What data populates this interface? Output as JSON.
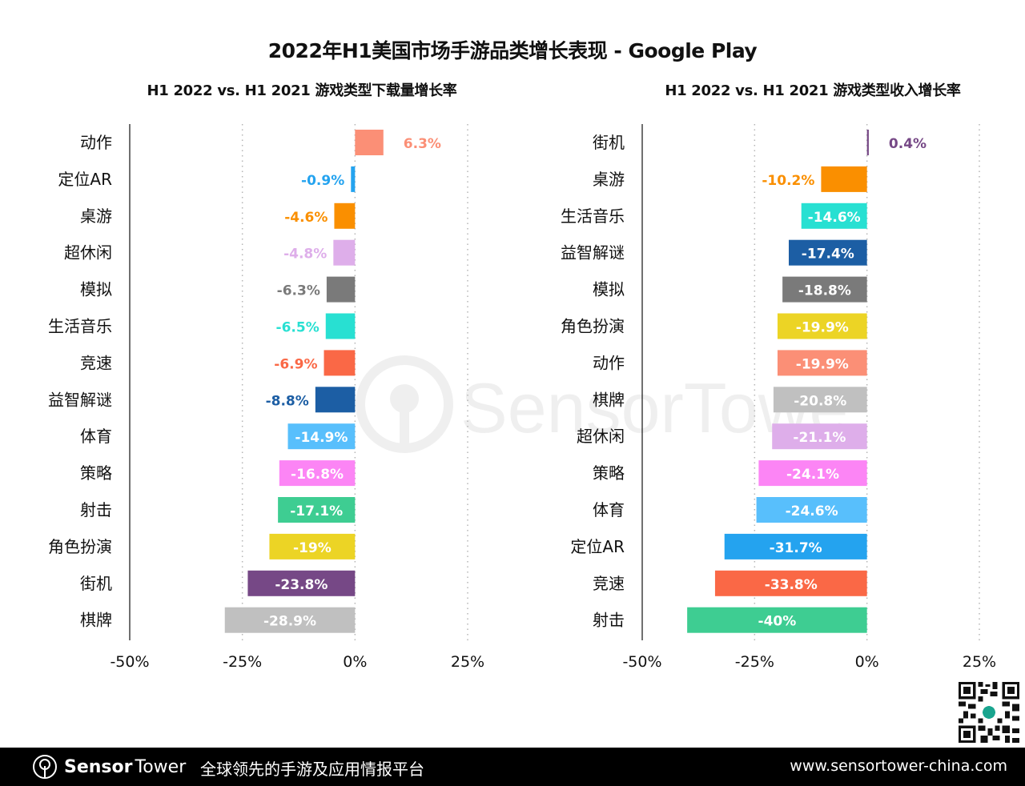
{
  "header": {
    "title": "2022年H1美国市场手游品类增长表现 - Google Play"
  },
  "chart_data": [
    {
      "type": "bar",
      "orientation": "horizontal",
      "title": "H1 2022 vs. H1 2021 游戏类型下载量增长率",
      "xlabel": "",
      "ylabel": "",
      "xlim": [
        -50,
        25
      ],
      "xticks": [
        "-50%",
        "-25%",
        "0%",
        "25%"
      ],
      "xtick_values": [
        -50,
        -25,
        0,
        25
      ],
      "grid": "vertical-dotted",
      "categories": [
        "动作",
        "定位AR",
        "桌游",
        "超休闲",
        "模拟",
        "生活音乐",
        "竞速",
        "益智解谜",
        "体育",
        "策略",
        "射击",
        "角色扮演",
        "街机",
        "棋牌"
      ],
      "values": [
        6.3,
        -0.9,
        -4.6,
        -4.8,
        -6.3,
        -6.5,
        -6.9,
        -8.8,
        -14.9,
        -16.8,
        -17.1,
        -19,
        -23.8,
        -28.9
      ],
      "labels": [
        "6.3%",
        "-0.9%",
        "-4.6%",
        "-4.8%",
        "-6.3%",
        "-6.5%",
        "-6.9%",
        "-8.8%",
        "-14.9%",
        "-16.8%",
        "-17.1%",
        "-19%",
        "-23.8%",
        "-28.9%"
      ],
      "colors": [
        "#fb8f76",
        "#24a3ef",
        "#fa8f00",
        "#deaeea",
        "#7a7a7a",
        "#28e0d2",
        "#fa6846",
        "#1c5ea4",
        "#58bffc",
        "#fc85f5",
        "#3ecd92",
        "#ecd425",
        "#764886",
        "#c0c0c0"
      ]
    },
    {
      "type": "bar",
      "orientation": "horizontal",
      "title": "H1 2022 vs. H1 2021 游戏类型收入增长率",
      "xlabel": "",
      "ylabel": "",
      "xlim": [
        -50,
        25
      ],
      "xticks": [
        "-50%",
        "-25%",
        "0%",
        "25%"
      ],
      "xtick_values": [
        -50,
        -25,
        0,
        25
      ],
      "grid": "vertical-dotted",
      "categories": [
        "街机",
        "桌游",
        "生活音乐",
        "益智解谜",
        "模拟",
        "角色扮演",
        "动作",
        "棋牌",
        "超休闲",
        "策略",
        "体育",
        "定位AR",
        "竞速",
        "射击"
      ],
      "values": [
        0.4,
        -10.2,
        -14.6,
        -17.4,
        -18.8,
        -19.9,
        -19.9,
        -20.8,
        -21.1,
        -24.1,
        -24.6,
        -31.7,
        -33.8,
        -40
      ],
      "labels": [
        "0.4%",
        "-10.2%",
        "-14.6%",
        "-17.4%",
        "-18.8%",
        "-19.9%",
        "-19.9%",
        "-20.8%",
        "-21.1%",
        "-24.1%",
        "-24.6%",
        "-31.7%",
        "-33.8%",
        "-40%"
      ],
      "colors": [
        "#764886",
        "#fa8f00",
        "#28e0d2",
        "#1c5ea4",
        "#7a7a7a",
        "#ecd425",
        "#fb8f76",
        "#c0c0c0",
        "#deaeea",
        "#fc85f5",
        "#58bffc",
        "#24a3ef",
        "#fa6846",
        "#3ecd92"
      ]
    }
  ],
  "watermark": "SensorTower",
  "footer": {
    "brand_bold": "Sensor",
    "brand_light": "Tower",
    "slogan": "全球领先的手游及应用情报平台",
    "url": "www.sensortower-china.com"
  },
  "icons": {
    "logo": "sensor-tower-logo-icon",
    "qr": "qr-code-icon"
  }
}
